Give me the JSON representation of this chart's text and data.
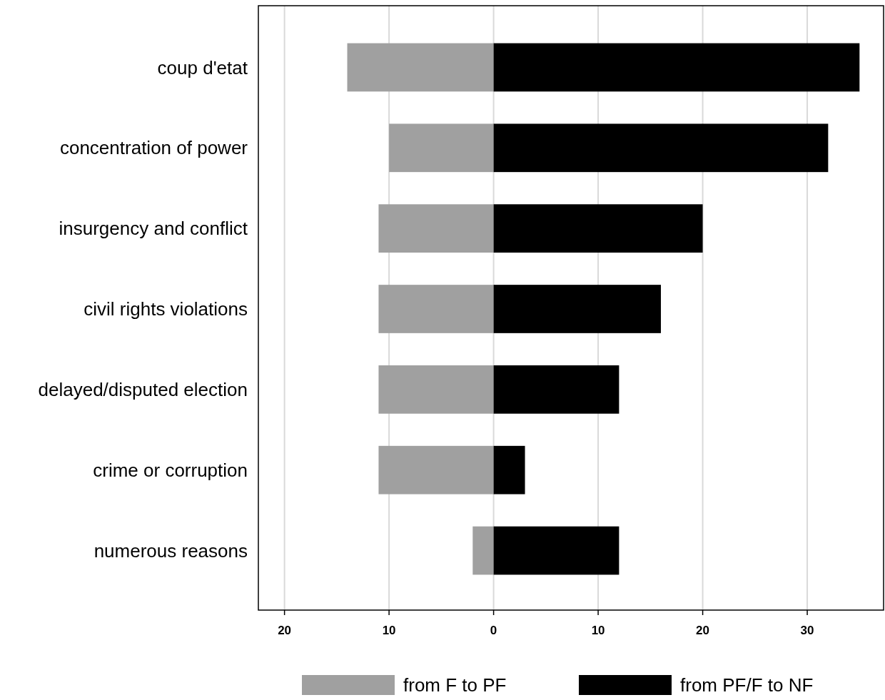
{
  "chart_data": {
    "type": "bar",
    "orientation": "horizontal",
    "stacked": true,
    "categories": [
      "coup d'etat",
      "concentration of power",
      "insurgency and conflict",
      "civil rights violations",
      "delayed/disputed election",
      "crime or corruption",
      "numerous reasons"
    ],
    "series": [
      {
        "name": "from F to PF",
        "color": "#a0a0a0",
        "values": [
          -14,
          -10,
          -11,
          -11,
          -11,
          -11,
          -2
        ]
      },
      {
        "name": "from PF/F to NF",
        "color": "#000000",
        "values": [
          35,
          32,
          20,
          16,
          12,
          3,
          12
        ]
      }
    ],
    "xlim": [
      -22.5,
      37.3
    ],
    "xticks": [
      {
        "value": -20,
        "label": "20"
      },
      {
        "value": -10,
        "label": "10"
      },
      0,
      10,
      20,
      30
    ],
    "grid": "x",
    "legend": "bottom"
  }
}
